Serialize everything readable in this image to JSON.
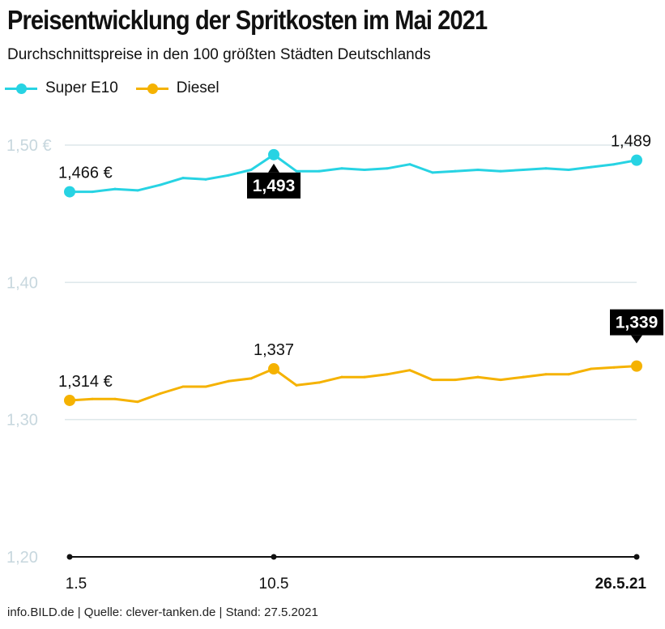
{
  "header": {
    "title": "Preisentwicklung der Spritkosten im Mai 2021",
    "subtitle": "Durchschnittspreise in den 100 größten Städten Deutschlands"
  },
  "footer": {
    "source": "info.BILD.de | Quelle: clever-tanken.de | Stand: 27.5.2021"
  },
  "colors": {
    "super_e10": "#27d3e3",
    "diesel": "#f5b200",
    "grid": "#dde7ea",
    "tick": "#c7d7de",
    "axis": "#111111",
    "badge": "#000000"
  },
  "chart_data": {
    "type": "line",
    "title": "Preisentwicklung der Spritkosten im Mai 2021",
    "subtitle": "Durchschnittspreise in den 100 größten Städten Deutschlands",
    "xlabel": "",
    "ylabel": "",
    "x": [
      1,
      2,
      3,
      4,
      5,
      6,
      7,
      8,
      9,
      10,
      11,
      12,
      13,
      14,
      15,
      16,
      17,
      18,
      19,
      20,
      21,
      22,
      23,
      24,
      25,
      26
    ],
    "x_ticks": [
      {
        "value": 1,
        "label": "1.5",
        "bold": false
      },
      {
        "value": 10,
        "label": "10.5",
        "bold": false
      },
      {
        "value": 26,
        "label": "26.5.21",
        "bold": true
      }
    ],
    "ylim": [
      1.2,
      1.5
    ],
    "y_ticks": [
      {
        "value": 1.5,
        "label": "1,50 €"
      },
      {
        "value": 1.4,
        "label": "1,40"
      },
      {
        "value": 1.3,
        "label": "1,30"
      },
      {
        "value": 1.2,
        "label": "1,20"
      }
    ],
    "legend": "top-left",
    "series": [
      {
        "name": "Super E10",
        "key": "super_e10",
        "values": [
          1.466,
          1.466,
          1.468,
          1.467,
          1.471,
          1.476,
          1.475,
          1.478,
          1.482,
          1.493,
          1.481,
          1.481,
          1.483,
          1.482,
          1.483,
          1.486,
          1.48,
          1.481,
          1.482,
          1.481,
          1.482,
          1.483,
          1.482,
          1.484,
          1.486,
          1.489
        ]
      },
      {
        "name": "Diesel",
        "key": "diesel",
        "values": [
          1.314,
          1.315,
          1.315,
          1.313,
          1.319,
          1.324,
          1.324,
          1.328,
          1.33,
          1.337,
          1.325,
          1.327,
          1.331,
          1.331,
          1.333,
          1.336,
          1.329,
          1.329,
          1.331,
          1.329,
          1.331,
          1.333,
          1.333,
          1.337,
          1.338,
          1.339
        ]
      }
    ],
    "annotations": [
      {
        "series": "super_e10",
        "x": 1,
        "label": "1,466 €",
        "style": "plain",
        "position": "above"
      },
      {
        "series": "super_e10",
        "x": 10,
        "label": "1,493",
        "style": "badge",
        "position": "below"
      },
      {
        "series": "super_e10",
        "x": 26,
        "label": "1,489",
        "style": "plain",
        "position": "above"
      },
      {
        "series": "diesel",
        "x": 1,
        "label": "1,314 €",
        "style": "plain",
        "position": "above"
      },
      {
        "series": "diesel",
        "x": 10,
        "label": "1,337",
        "style": "plain",
        "position": "above"
      },
      {
        "series": "diesel",
        "x": 26,
        "label": "1,339",
        "style": "badge",
        "position": "above"
      }
    ]
  }
}
